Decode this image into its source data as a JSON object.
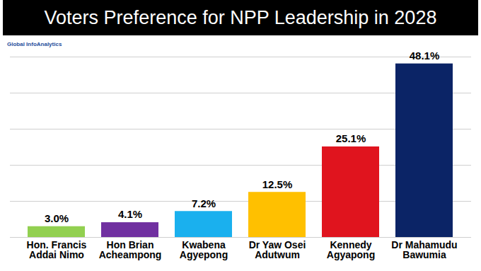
{
  "chart_data": {
    "type": "bar",
    "title": "Voters Preference for NPP Leadership in 2028",
    "annotations": [
      "Global InfoAnalytics"
    ],
    "categories": [
      "Hon. Francis Addai Nimo",
      "Hon Brian Acheampong",
      "Kwabena Agyepong",
      "Dr Yaw Osei Adutwum",
      "Kennedy Agyapong",
      "Dr Mahamudu Bawumia"
    ],
    "values": [
      3.0,
      4.1,
      7.2,
      12.5,
      25.1,
      48.1
    ],
    "value_labels": [
      "3.0%",
      "4.1%",
      "7.2%",
      "12.5%",
      "25.1%",
      "48.1%"
    ],
    "colors": [
      "#92d050",
      "#7030a0",
      "#1ab0ee",
      "#ffc000",
      "#e0141e",
      "#0b2466"
    ],
    "ylim": [
      0,
      50
    ],
    "yticks": [
      0,
      10,
      20,
      30,
      40,
      50
    ],
    "grid": true,
    "data_labels": true,
    "tick_labels": "x"
  }
}
